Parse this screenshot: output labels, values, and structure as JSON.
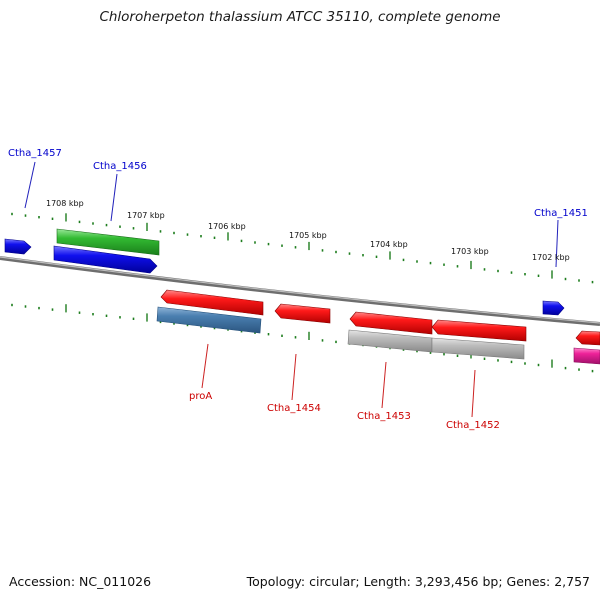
{
  "title": "Chloroherpeton thalassium ATCC 35110, complete genome",
  "footer": {
    "accession": "Accession: NC_011026",
    "topology": "Topology: circular; Length: 3,293,456 bp; Genes: 2,757"
  },
  "colors": {
    "backbone": "#808080",
    "tick": "#1e7d1e",
    "forward_label": "#0000cc",
    "reverse_label": "#cc0000"
  },
  "kbp_labels": [
    "1708 kbp",
    "1707 kbp",
    "1706 kbp",
    "1705 kbp",
    "1704 kbp",
    "1703 kbp",
    "1702 kbp"
  ],
  "gene_labels": {
    "ctha_1457": "Ctha_1457",
    "ctha_1456": "Ctha_1456",
    "ctha_1451": "Ctha_1451",
    "proA": "proA",
    "ctha_1454": "Ctha_1454",
    "ctha_1453": "Ctha_1453",
    "ctha_1452": "Ctha_1452"
  },
  "features": [
    {
      "id": "left-blue",
      "strand": "forward",
      "color": "#1010e0"
    },
    {
      "id": "ctha_1456-green",
      "strand": "forward",
      "color": "#33bb33"
    },
    {
      "id": "ctha_1456-blue",
      "strand": "forward",
      "color": "#1010e0"
    },
    {
      "id": "ctha_1451-blue",
      "strand": "forward",
      "color": "#1010e0"
    },
    {
      "id": "proA-red",
      "strand": "reverse",
      "color": "#ee1111"
    },
    {
      "id": "proA-steel",
      "strand": "reverse",
      "color": "#4a7fb0"
    },
    {
      "id": "ctha_1454-red",
      "strand": "reverse",
      "color": "#ee1111"
    },
    {
      "id": "ctha_1453-red",
      "strand": "reverse",
      "color": "#ee1111"
    },
    {
      "id": "ctha_1453-grey",
      "strand": "reverse",
      "color": "#b8b8b8"
    },
    {
      "id": "ctha_1452-red",
      "strand": "reverse",
      "color": "#ee1111"
    },
    {
      "id": "ctha_1452-grey",
      "strand": "reverse",
      "color": "#b8b8b8"
    },
    {
      "id": "right-red",
      "strand": "reverse",
      "color": "#ee1111"
    },
    {
      "id": "right-pink",
      "strand": "reverse",
      "color": "#ee2299"
    }
  ]
}
